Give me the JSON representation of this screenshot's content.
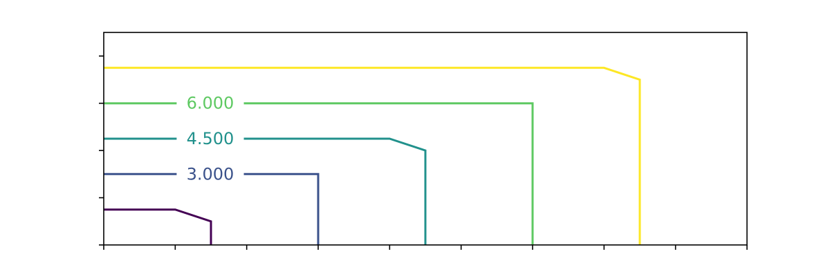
{
  "chart_data": {
    "type": "contour",
    "title": "",
    "xlabel": "",
    "ylabel": "",
    "xlim": [
      0,
      9
    ],
    "ylim": [
      0,
      4.5
    ],
    "xticks": [
      0,
      1,
      2,
      3,
      4,
      5,
      6,
      7,
      8,
      9
    ],
    "yticks": [
      0,
      1,
      2,
      3,
      4
    ],
    "tick_labels_visible": false,
    "levels": [
      {
        "value": 1.5,
        "label": "",
        "color": "#440154",
        "points": [
          [
            0,
            0.75
          ],
          [
            1,
            0.75
          ],
          [
            1.5,
            0.5
          ],
          [
            1.5,
            0
          ]
        ]
      },
      {
        "value": 3.0,
        "label": "3.000",
        "color": "#3b528b",
        "points": [
          [
            0,
            1.5
          ],
          [
            3,
            1.5
          ],
          [
            3,
            0
          ]
        ]
      },
      {
        "value": 4.5,
        "label": "4.500",
        "color": "#21918c",
        "points": [
          [
            0,
            2.25
          ],
          [
            4,
            2.25
          ],
          [
            4.5,
            2
          ],
          [
            4.5,
            0
          ]
        ]
      },
      {
        "value": 6.0,
        "label": "6.000",
        "color": "#5ec962",
        "points": [
          [
            0,
            3
          ],
          [
            6,
            3
          ],
          [
            6,
            0
          ]
        ]
      },
      {
        "value": 7.5,
        "label": "",
        "color": "#fde725",
        "points": [
          [
            0,
            3.75
          ],
          [
            7,
            3.75
          ],
          [
            7.5,
            3.5
          ],
          [
            7.5,
            0
          ]
        ]
      }
    ]
  }
}
